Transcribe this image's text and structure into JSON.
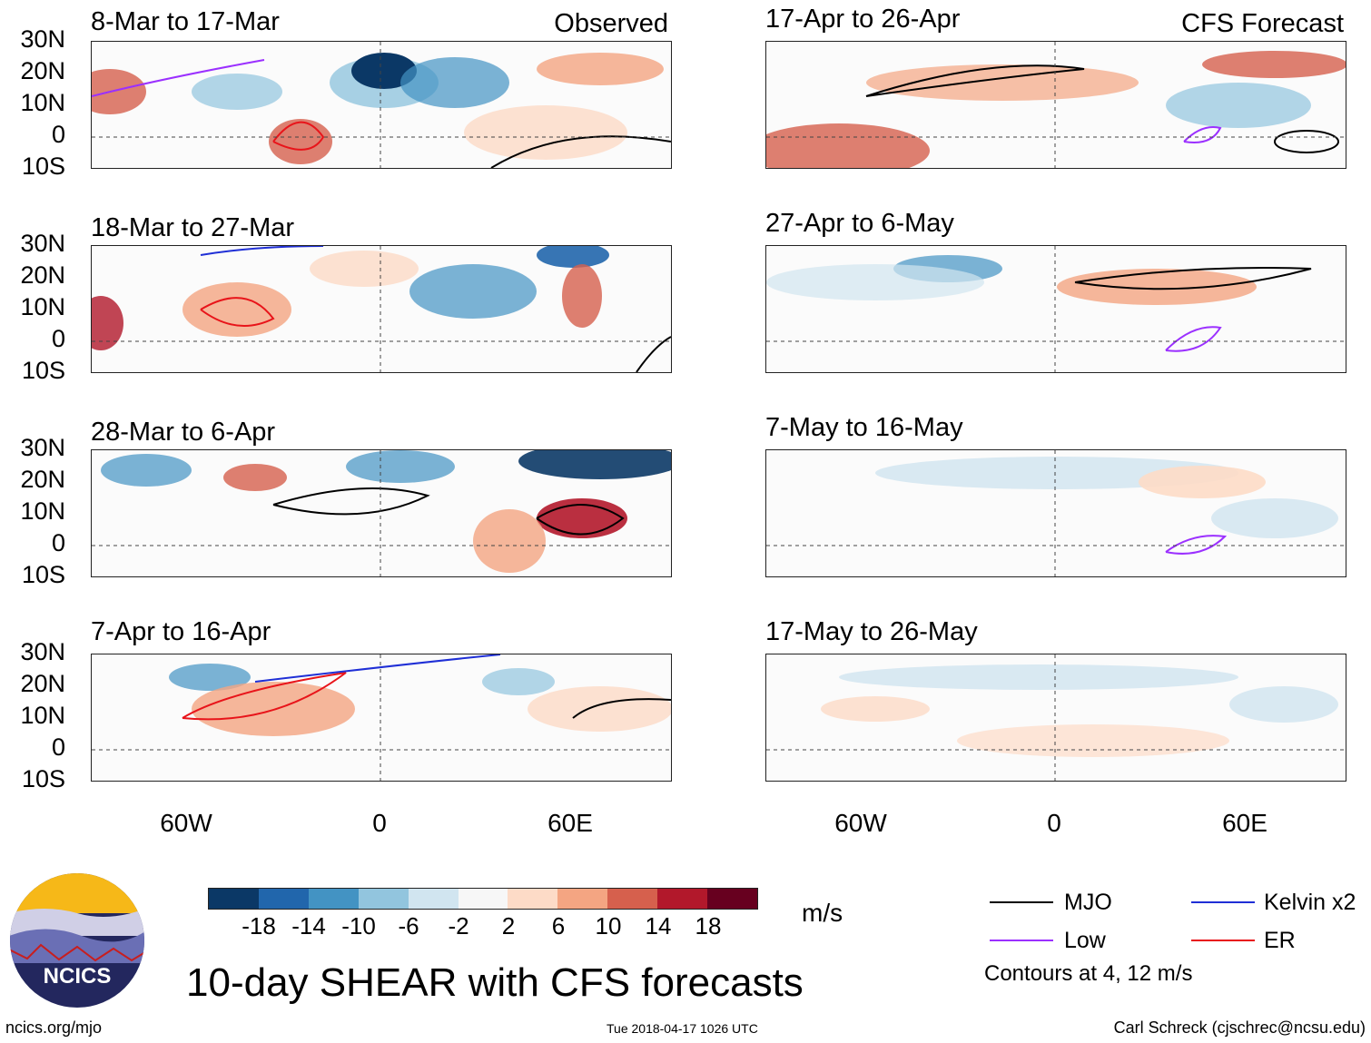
{
  "observed_label": "Observed",
  "forecast_label": "CFS Forecast",
  "left_panels": [
    {
      "title": "8-Mar to 17-Mar"
    },
    {
      "title": "18-Mar to 27-Mar"
    },
    {
      "title": "28-Mar to 6-Apr"
    },
    {
      "title": "7-Apr to 16-Apr"
    }
  ],
  "right_panels": [
    {
      "title": "17-Apr to 26-Apr"
    },
    {
      "title": "27-Apr to 6-May"
    },
    {
      "title": "7-May to 16-May"
    },
    {
      "title": "17-May to 26-May"
    }
  ],
  "lat_labels": [
    "30N",
    "20N",
    "10N",
    "0",
    "10S"
  ],
  "lon_labels": [
    "60W",
    "0",
    "60E"
  ],
  "colorbar": {
    "colors": [
      "#0b3866",
      "#2166ac",
      "#4393c3",
      "#92c5de",
      "#d1e5f0",
      "#f7f7f7",
      "#fddbc7",
      "#f4a582",
      "#d6604d",
      "#b2182b",
      "#67001f"
    ],
    "ticks": [
      "-18",
      "-14",
      "-10",
      "-6",
      "-2",
      "2",
      "6",
      "10",
      "14",
      "18"
    ],
    "units": "m/s"
  },
  "title": "10-day SHEAR with CFS forecasts",
  "legend": {
    "items": [
      {
        "label": "MJO",
        "color": "#000000"
      },
      {
        "label": "Kelvin x2",
        "color": "#1f2fd6"
      },
      {
        "label": "Low",
        "color": "#9b30ff"
      },
      {
        "label": "ER",
        "color": "#e8141a"
      }
    ],
    "note": "Contours at 4, 12 m/s"
  },
  "logo_text": "NCICS",
  "footer": {
    "left": "ncics.org/mjo",
    "center": "Tue 2018-04-17 1026 UTC",
    "right": "Carl Schreck (cjschrec@ncsu.edu)"
  }
}
